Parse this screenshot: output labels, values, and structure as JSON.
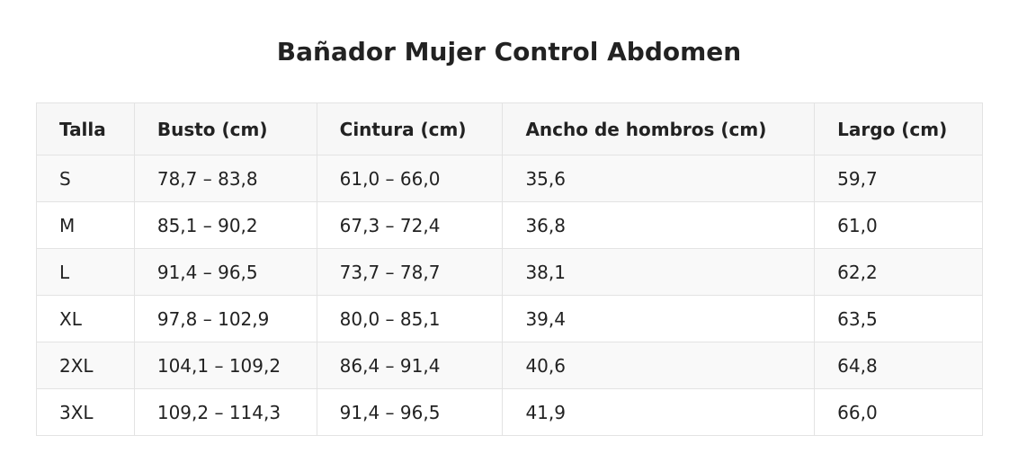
{
  "title": "Bañador Mujer Control Abdomen",
  "table": {
    "headers": [
      "Talla",
      "Busto (cm)",
      "Cintura (cm)",
      "Ancho de hombros (cm)",
      "Largo (cm)"
    ],
    "rows": [
      [
        "S",
        "78,7 – 83,8",
        "61,0 – 66,0",
        "35,6",
        "59,7"
      ],
      [
        "M",
        "85,1 – 90,2",
        "67,3 – 72,4",
        "36,8",
        "61,0"
      ],
      [
        "L",
        "91,4 – 96,5",
        "73,7 – 78,7",
        "38,1",
        "62,2"
      ],
      [
        "XL",
        "97,8 – 102,9",
        "80,0 – 85,1",
        "39,4",
        "63,5"
      ],
      [
        "2XL",
        "104,1 – 109,2",
        "86,4 – 91,4",
        "40,6",
        "64,8"
      ],
      [
        "3XL",
        "109,2 – 114,3",
        "91,4 – 96,5",
        "41,9",
        "66,0"
      ]
    ]
  }
}
